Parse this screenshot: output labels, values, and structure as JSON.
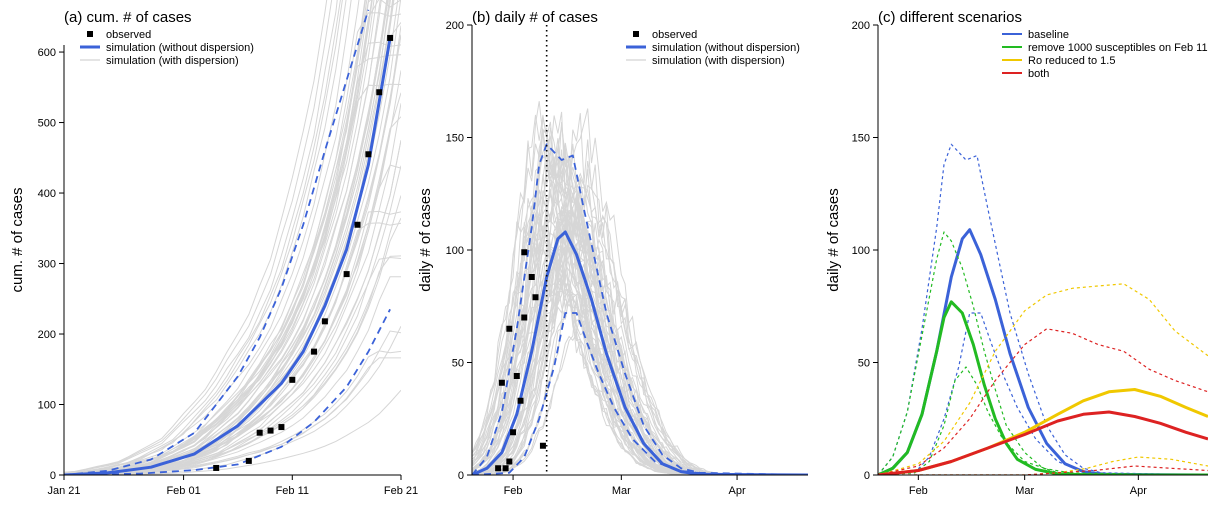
{
  "chart_data": [
    {
      "panel": "a",
      "type": "line",
      "title": "(a) cum. # of cases",
      "ylabel": "cum. # of cases",
      "xlim": [
        "2020-01-21",
        "2020-02-21"
      ],
      "ylim": [
        0,
        610
      ],
      "x_tick_labels": [
        {
          "date": "2020-01-21",
          "label": "Jan 21"
        },
        {
          "date": "2020-02-01",
          "label": "Feb 01"
        },
        {
          "date": "2020-02-11",
          "label": "Feb 11"
        },
        {
          "date": "2020-02-21",
          "label": "Feb 21"
        }
      ],
      "y_ticks": [
        0,
        100,
        200,
        300,
        400,
        500,
        600
      ],
      "legend": {
        "position": "top-left",
        "entries": [
          {
            "label": "observed",
            "symbol": "square",
            "color": "#000000"
          },
          {
            "label": "simulation (without dispersion)",
            "symbol": "line-thick",
            "color": "#3b62d8"
          },
          {
            "label": "simulation (with dispersion)",
            "symbol": "line-thin",
            "color": "#c8c8c8"
          }
        ]
      },
      "observed": [
        {
          "x": "2020-02-04",
          "y": 10
        },
        {
          "x": "2020-02-07",
          "y": 20
        },
        {
          "x": "2020-02-08",
          "y": 60
        },
        {
          "x": "2020-02-09",
          "y": 63
        },
        {
          "x": "2020-02-10",
          "y": 68
        },
        {
          "x": "2020-02-11",
          "y": 135
        },
        {
          "x": "2020-02-13",
          "y": 175
        },
        {
          "x": "2020-02-14",
          "y": 218
        },
        {
          "x": "2020-02-16",
          "y": 285
        },
        {
          "x": "2020-02-17",
          "y": 355
        },
        {
          "x": "2020-02-18",
          "y": 455
        },
        {
          "x": "2020-02-19",
          "y": 543
        },
        {
          "x": "2020-02-20",
          "y": 620
        }
      ],
      "series": [
        {
          "role": "median",
          "style": "solid",
          "color": "#3b62d8",
          "x": [
            "2020-01-21",
            "2020-01-25",
            "2020-01-29",
            "2020-02-02",
            "2020-02-06",
            "2020-02-10",
            "2020-02-12",
            "2020-02-14",
            "2020-02-16",
            "2020-02-18",
            "2020-02-20"
          ],
          "y": [
            0,
            3,
            11,
            30,
            70,
            130,
            175,
            240,
            320,
            440,
            620
          ]
        },
        {
          "role": "upper",
          "style": "dashed",
          "color": "#3b62d8",
          "x": [
            "2020-01-21",
            "2020-01-25",
            "2020-01-29",
            "2020-02-02",
            "2020-02-06",
            "2020-02-08",
            "2020-02-10",
            "2020-02-12",
            "2020-02-14",
            "2020-02-16",
            "2020-02-18"
          ],
          "y": [
            0,
            6,
            22,
            60,
            140,
            195,
            265,
            355,
            460,
            560,
            660
          ]
        },
        {
          "role": "lower",
          "style": "dashed",
          "color": "#3b62d8",
          "x": [
            "2020-01-21",
            "2020-01-28",
            "2020-02-02",
            "2020-02-06",
            "2020-02-10",
            "2020-02-13",
            "2020-02-16",
            "2020-02-18",
            "2020-02-20"
          ],
          "y": [
            0,
            2,
            7,
            15,
            40,
            75,
            125,
            175,
            235
          ]
        }
      ]
    },
    {
      "panel": "b",
      "type": "line",
      "title": "(b) daily # of cases",
      "ylabel": "daily # of cases",
      "xlim": [
        "2020-01-21",
        "2020-04-20"
      ],
      "ylim": [
        0,
        200
      ],
      "x_tick_labels": [
        {
          "date": "2020-02-01",
          "label": "Feb"
        },
        {
          "date": "2020-03-01",
          "label": "Mar"
        },
        {
          "date": "2020-04-01",
          "label": "Apr"
        }
      ],
      "y_ticks": [
        0,
        50,
        100,
        150,
        200
      ],
      "vertical_line": {
        "date": "2020-02-10",
        "style": "dotted"
      },
      "legend": {
        "position": "top-right",
        "entries": [
          {
            "label": "observed",
            "symbol": "square",
            "color": "#000000"
          },
          {
            "label": "simulation (without dispersion)",
            "symbol": "line-thick",
            "color": "#3b62d8"
          },
          {
            "label": "simulation (with dispersion)",
            "symbol": "line-thin",
            "color": "#c8c8c8"
          }
        ]
      },
      "observed": [
        {
          "x": "2020-01-28",
          "y": 3
        },
        {
          "x": "2020-01-29",
          "y": 41
        },
        {
          "x": "2020-01-30",
          "y": 3
        },
        {
          "x": "2020-01-31",
          "y": 6
        },
        {
          "x": "2020-01-31",
          "y": 65
        },
        {
          "x": "2020-02-01",
          "y": 19
        },
        {
          "x": "2020-02-02",
          "y": 44
        },
        {
          "x": "2020-02-03",
          "y": 33
        },
        {
          "x": "2020-02-04",
          "y": 70
        },
        {
          "x": "2020-02-04",
          "y": 99
        },
        {
          "x": "2020-02-06",
          "y": 88
        },
        {
          "x": "2020-02-07",
          "y": 79
        },
        {
          "x": "2020-02-09",
          "y": 13
        }
      ],
      "series": [
        {
          "role": "median",
          "style": "solid",
          "color": "#3b62d8",
          "x": [
            "2020-01-21",
            "2020-01-25",
            "2020-01-29",
            "2020-02-02",
            "2020-02-06",
            "2020-02-10",
            "2020-02-13",
            "2020-02-15",
            "2020-02-18",
            "2020-02-22",
            "2020-02-26",
            "2020-03-02",
            "2020-03-07",
            "2020-03-12",
            "2020-03-17",
            "2020-03-22",
            "2020-04-20"
          ],
          "y": [
            0,
            3,
            10,
            27,
            55,
            88,
            105,
            108,
            98,
            78,
            54,
            30,
            14,
            5,
            1.5,
            0.3,
            0
          ]
        },
        {
          "role": "upper",
          "style": "dashed",
          "color": "#3b62d8",
          "x": [
            "2020-01-21",
            "2020-01-25",
            "2020-01-29",
            "2020-02-02",
            "2020-02-06",
            "2020-02-08",
            "2020-02-10",
            "2020-02-14",
            "2020-02-17",
            "2020-02-20",
            "2020-02-23",
            "2020-02-26",
            "2020-03-02",
            "2020-03-07",
            "2020-03-12",
            "2020-03-17",
            "2020-03-22",
            "2020-04-20"
          ],
          "y": [
            0,
            8,
            28,
            65,
            110,
            138,
            147,
            140,
            142,
            118,
            95,
            72,
            45,
            22,
            9,
            3,
            1,
            0
          ]
        },
        {
          "role": "lower",
          "style": "dashed",
          "color": "#3b62d8",
          "x": [
            "2020-01-21",
            "2020-01-31",
            "2020-02-04",
            "2020-02-08",
            "2020-02-12",
            "2020-02-15",
            "2020-02-18",
            "2020-02-21",
            "2020-02-24",
            "2020-02-28",
            "2020-03-04",
            "2020-03-10",
            "2020-03-16",
            "2020-03-25",
            "2020-04-20"
          ],
          "y": [
            0,
            1,
            8,
            25,
            48,
            72,
            72,
            58,
            45,
            30,
            16,
            6,
            2,
            0.3,
            0
          ]
        }
      ]
    },
    {
      "panel": "c",
      "type": "line",
      "title": "(c) different scenarios",
      "ylabel": "daily # of cases",
      "xlim": [
        "2020-01-21",
        "2020-04-20"
      ],
      "ylim": [
        0,
        200
      ],
      "x_tick_labels": [
        {
          "date": "2020-02-01",
          "label": "Feb"
        },
        {
          "date": "2020-03-01",
          "label": "Mar"
        },
        {
          "date": "2020-04-01",
          "label": "Apr"
        }
      ],
      "y_ticks": [
        0,
        50,
        100,
        150,
        200
      ],
      "legend": {
        "position": "top-right",
        "entries": [
          {
            "label": "baseline",
            "color": "#3b62d8"
          },
          {
            "label": "remove 1000 susceptibles on Feb 11",
            "color": "#22bb22"
          },
          {
            "label": "Ro reduced to 1.5",
            "color": "#f0c800"
          },
          {
            "label": "both",
            "color": "#dd2222"
          }
        ]
      },
      "series": [
        {
          "name": "baseline",
          "role": "median",
          "style": "solid",
          "color": "#3b62d8",
          "x": [
            "2020-01-21",
            "2020-01-25",
            "2020-01-29",
            "2020-02-02",
            "2020-02-06",
            "2020-02-10",
            "2020-02-13",
            "2020-02-15",
            "2020-02-18",
            "2020-02-22",
            "2020-02-26",
            "2020-03-02",
            "2020-03-07",
            "2020-03-12",
            "2020-03-17",
            "2020-03-22",
            "2020-04-20"
          ],
          "y": [
            0,
            3,
            10,
            27,
            55,
            88,
            105,
            109,
            98,
            78,
            54,
            30,
            14,
            5,
            1.5,
            0.3,
            0
          ]
        },
        {
          "name": "baseline",
          "role": "upper",
          "style": "dashed",
          "color": "#3b62d8",
          "x": [
            "2020-01-21",
            "2020-01-25",
            "2020-01-29",
            "2020-02-02",
            "2020-02-06",
            "2020-02-08",
            "2020-02-10",
            "2020-02-14",
            "2020-02-17",
            "2020-02-20",
            "2020-02-23",
            "2020-02-26",
            "2020-03-02",
            "2020-03-07",
            "2020-03-12",
            "2020-03-17",
            "2020-03-22",
            "2020-04-20"
          ],
          "y": [
            0,
            8,
            28,
            65,
            110,
            138,
            147,
            140,
            142,
            118,
            95,
            72,
            45,
            22,
            9,
            3,
            1,
            0
          ]
        },
        {
          "name": "baseline",
          "role": "lower",
          "style": "dashed",
          "color": "#3b62d8",
          "x": [
            "2020-01-21",
            "2020-01-31",
            "2020-02-04",
            "2020-02-08",
            "2020-02-12",
            "2020-02-15",
            "2020-02-18",
            "2020-02-21",
            "2020-02-24",
            "2020-02-28",
            "2020-03-04",
            "2020-03-10",
            "2020-03-16",
            "2020-03-25",
            "2020-04-20"
          ],
          "y": [
            0,
            1,
            8,
            25,
            48,
            72,
            72,
            58,
            45,
            30,
            16,
            6,
            2,
            0.3,
            0
          ]
        },
        {
          "name": "remove 1000 susceptibles on Feb 11",
          "role": "median",
          "style": "solid",
          "color": "#22bb22",
          "x": [
            "2020-01-21",
            "2020-01-25",
            "2020-01-29",
            "2020-02-02",
            "2020-02-06",
            "2020-02-08",
            "2020-02-10",
            "2020-02-13",
            "2020-02-16",
            "2020-02-19",
            "2020-02-22",
            "2020-02-25",
            "2020-02-28",
            "2020-03-04",
            "2020-03-10",
            "2020-03-20",
            "2020-04-20"
          ],
          "y": [
            0,
            3,
            10,
            27,
            55,
            70,
            77,
            72,
            58,
            40,
            25,
            14,
            7,
            2.5,
            0.5,
            0,
            0
          ]
        },
        {
          "name": "remove 1000 susceptibles on Feb 11",
          "role": "upper",
          "style": "dashed",
          "color": "#22bb22",
          "x": [
            "2020-01-21",
            "2020-01-25",
            "2020-01-29",
            "2020-02-02",
            "2020-02-06",
            "2020-02-08",
            "2020-02-10",
            "2020-02-13",
            "2020-02-16",
            "2020-02-19",
            "2020-02-22",
            "2020-02-25",
            "2020-03-01",
            "2020-03-06",
            "2020-03-15",
            "2020-04-20"
          ],
          "y": [
            0,
            8,
            28,
            62,
            96,
            108,
            104,
            92,
            75,
            55,
            38,
            22,
            10,
            3,
            0.5,
            0
          ]
        },
        {
          "name": "remove 1000 susceptibles on Feb 11",
          "role": "lower",
          "style": "dashed",
          "color": "#22bb22",
          "x": [
            "2020-01-21",
            "2020-01-31",
            "2020-02-04",
            "2020-02-08",
            "2020-02-11",
            "2020-02-14",
            "2020-02-17",
            "2020-02-20",
            "2020-02-24",
            "2020-03-01",
            "2020-03-10",
            "2020-04-20"
          ],
          "y": [
            0,
            1,
            6,
            22,
            42,
            48,
            40,
            28,
            16,
            6,
            1,
            0
          ]
        },
        {
          "name": "Ro reduced to 1.5",
          "role": "median",
          "style": "solid",
          "color": "#f0c800",
          "x": [
            "2020-01-21",
            "2020-02-01",
            "2020-02-10",
            "2020-02-20",
            "2020-03-01",
            "2020-03-10",
            "2020-03-17",
            "2020-03-24",
            "2020-03-31",
            "2020-04-07",
            "2020-04-14",
            "2020-04-20"
          ],
          "y": [
            0,
            2,
            6,
            12,
            19,
            27,
            33,
            37,
            38,
            35,
            30,
            26
          ]
        },
        {
          "name": "Ro reduced to 1.5",
          "role": "upper",
          "style": "dashed",
          "color": "#f0c800",
          "x": [
            "2020-01-21",
            "2020-02-01",
            "2020-02-08",
            "2020-02-15",
            "2020-02-22",
            "2020-03-01",
            "2020-03-07",
            "2020-03-14",
            "2020-03-21",
            "2020-03-28",
            "2020-04-04",
            "2020-04-11",
            "2020-04-20"
          ],
          "y": [
            0,
            5,
            15,
            32,
            55,
            73,
            80,
            83,
            84,
            85,
            78,
            64,
            53
          ]
        },
        {
          "name": "Ro reduced to 1.5",
          "role": "lower",
          "style": "dashed",
          "color": "#f0c800",
          "x": [
            "2020-01-21",
            "2020-03-01",
            "2020-03-10",
            "2020-03-18",
            "2020-03-25",
            "2020-04-01",
            "2020-04-10",
            "2020-04-20"
          ],
          "y": [
            0,
            0,
            1,
            3,
            6,
            8,
            7,
            4
          ]
        },
        {
          "name": "both",
          "role": "median",
          "style": "solid",
          "color": "#dd2222",
          "x": [
            "2020-01-21",
            "2020-02-01",
            "2020-02-10",
            "2020-02-20",
            "2020-03-01",
            "2020-03-10",
            "2020-03-17",
            "2020-03-24",
            "2020-03-31",
            "2020-04-07",
            "2020-04-14",
            "2020-04-20"
          ],
          "y": [
            0,
            2,
            6,
            12,
            18,
            24,
            27,
            28,
            26,
            23,
            19,
            16
          ]
        },
        {
          "name": "both",
          "role": "upper",
          "style": "dashed",
          "color": "#dd2222",
          "x": [
            "2020-01-21",
            "2020-02-01",
            "2020-02-08",
            "2020-02-15",
            "2020-02-22",
            "2020-03-01",
            "2020-03-07",
            "2020-03-14",
            "2020-03-21",
            "2020-03-28",
            "2020-04-04",
            "2020-04-11",
            "2020-04-20"
          ],
          "y": [
            0,
            4,
            12,
            25,
            42,
            58,
            65,
            63,
            58,
            55,
            47,
            42,
            37
          ]
        },
        {
          "name": "both",
          "role": "lower",
          "style": "dashed",
          "color": "#dd2222",
          "x": [
            "2020-01-21",
            "2020-03-01",
            "2020-03-10",
            "2020-03-20",
            "2020-03-31",
            "2020-04-10",
            "2020-04-20"
          ],
          "y": [
            0,
            0,
            1,
            2,
            4,
            3,
            2
          ]
        }
      ]
    }
  ]
}
